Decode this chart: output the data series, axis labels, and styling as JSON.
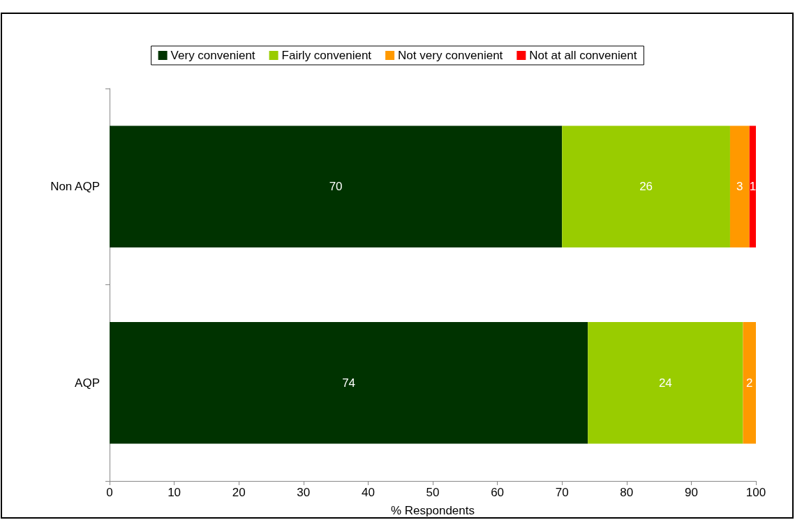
{
  "chart_data": {
    "type": "bar",
    "orientation": "horizontal",
    "stacked": true,
    "xlabel": "% Respondents",
    "categories": [
      "Non AQP",
      "AQP"
    ],
    "series": [
      {
        "name": "Very convenient",
        "color": "#003300",
        "values": [
          70,
          74
        ]
      },
      {
        "name": "Fairly convenient",
        "color": "#99cc00",
        "values": [
          26,
          24
        ]
      },
      {
        "name": "Not very convenient",
        "color": "#ff9900",
        "values": [
          3,
          2
        ]
      },
      {
        "name": "Not at all convenient",
        "color": "#ff0000",
        "values": [
          1,
          null
        ]
      }
    ],
    "xlim": [
      0,
      100
    ],
    "xticks": [
      0,
      10,
      20,
      30,
      40,
      50,
      60,
      70,
      80,
      90,
      100
    ],
    "data_labels": true,
    "grid": false,
    "legend": "top"
  }
}
